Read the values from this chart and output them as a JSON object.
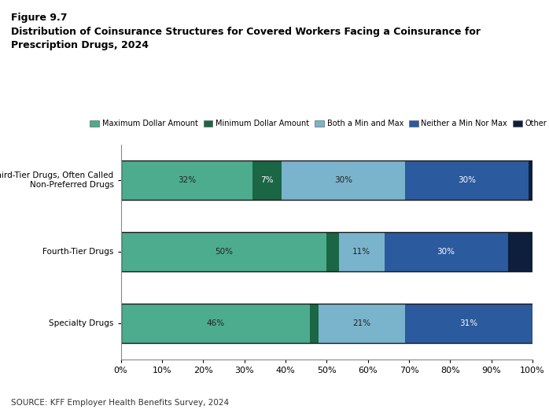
{
  "title_line1": "Figure 9.7",
  "title_line2": "Distribution of Coinsurance Structures for Covered Workers Facing a Coinsurance for",
  "title_line3": "Prescription Drugs, 2024",
  "source": "SOURCE: KFF Employer Health Benefits Survey, 2024",
  "categories": [
    "Third-Tier Drugs, Often Called\nNon-Preferred Drugs",
    "Fourth-Tier Drugs",
    "Specialty Drugs"
  ],
  "legend_labels": [
    "Maximum Dollar Amount",
    "Minimum Dollar Amount",
    "Both a Min and Max",
    "Neither a Min Nor Max",
    "Other"
  ],
  "colors": [
    "#4dab8e",
    "#1a6645",
    "#7ab3cc",
    "#2b5a9e",
    "#0d1f3c"
  ],
  "data": [
    [
      32,
      7,
      30,
      30,
      1
    ],
    [
      50,
      3,
      11,
      30,
      6
    ],
    [
      46,
      2,
      21,
      31,
      0
    ]
  ],
  "bar_labels": [
    [
      "32%",
      "7%",
      "30%",
      "30%",
      ""
    ],
    [
      "50%",
      "",
      "11%",
      "30%",
      ""
    ],
    [
      "46%",
      "",
      "21%",
      "31%",
      ""
    ]
  ],
  "xlim": [
    0,
    100
  ],
  "background_color": "#ffffff"
}
